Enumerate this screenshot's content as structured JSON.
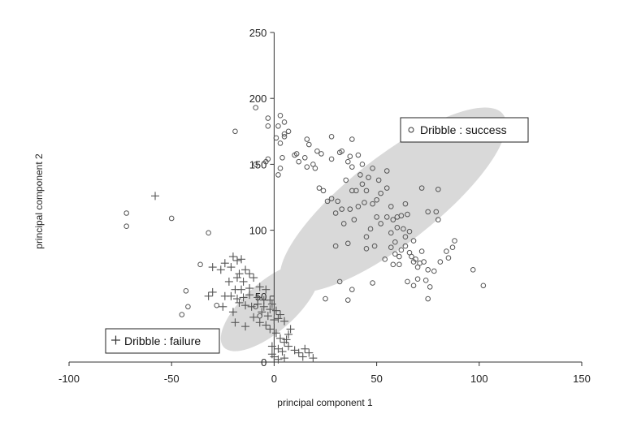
{
  "chart_data": {
    "type": "scatter",
    "title": "",
    "xlabel": "principal component 1",
    "ylabel": "principal component 2",
    "xlim": [
      -100,
      150
    ],
    "ylim": [
      0,
      250
    ],
    "xticks": [
      "-100",
      "-50",
      "0",
      "50",
      "100",
      "150"
    ],
    "yticks": [
      "0",
      "50",
      "100",
      "150",
      "200",
      "250"
    ],
    "grid": false,
    "series": [
      {
        "name": "Dribble : success",
        "marker": "circle",
        "color": "#555555",
        "points": [
          [
            -9,
            193
          ],
          [
            -3,
            179
          ],
          [
            -3,
            185
          ],
          [
            2,
            179
          ],
          [
            3,
            187
          ],
          [
            5,
            182
          ],
          [
            5,
            173
          ],
          [
            7,
            175
          ],
          [
            5,
            171
          ],
          [
            3,
            166
          ],
          [
            1,
            170
          ],
          [
            4,
            155
          ],
          [
            3,
            147
          ],
          [
            2,
            142
          ],
          [
            -4,
            152
          ],
          [
            -3,
            154
          ],
          [
            10,
            157
          ],
          [
            11,
            158
          ],
          [
            12,
            152
          ],
          [
            15,
            155
          ],
          [
            17,
            165
          ],
          [
            16,
            169
          ],
          [
            21,
            160
          ],
          [
            23,
            158
          ],
          [
            28,
            154
          ],
          [
            28,
            171
          ],
          [
            32,
            159
          ],
          [
            33,
            160
          ],
          [
            37,
            156
          ],
          [
            38,
            169
          ],
          [
            36,
            152
          ],
          [
            38,
            148
          ],
          [
            35,
            138
          ],
          [
            38,
            130
          ],
          [
            40,
            130
          ],
          [
            43,
            135
          ],
          [
            16,
            148
          ],
          [
            19,
            150
          ],
          [
            20,
            147
          ],
          [
            22,
            132
          ],
          [
            24,
            130
          ],
          [
            26,
            122
          ],
          [
            28,
            124
          ],
          [
            31,
            122
          ],
          [
            30,
            113
          ],
          [
            33,
            116
          ],
          [
            41,
            118
          ],
          [
            44,
            121
          ],
          [
            48,
            120
          ],
          [
            50,
            123
          ],
          [
            52,
            128
          ],
          [
            46,
            140
          ],
          [
            48,
            147
          ],
          [
            51,
            138
          ],
          [
            55,
            132
          ],
          [
            55,
            145
          ],
          [
            41,
            157
          ],
          [
            43,
            150
          ],
          [
            42,
            142
          ],
          [
            45,
            130
          ],
          [
            37,
            116
          ],
          [
            39,
            108
          ],
          [
            34,
            105
          ],
          [
            36,
            90
          ],
          [
            30,
            88
          ],
          [
            32,
            61
          ],
          [
            38,
            55
          ],
          [
            36,
            47
          ],
          [
            25,
            48
          ],
          [
            47,
            101
          ],
          [
            45,
            95
          ],
          [
            45,
            86
          ],
          [
            49,
            88
          ],
          [
            48,
            60
          ],
          [
            50,
            110
          ],
          [
            52,
            105
          ],
          [
            55,
            110
          ],
          [
            57,
            118
          ],
          [
            58,
            108
          ],
          [
            60,
            110
          ],
          [
            62,
            111
          ],
          [
            64,
            120
          ],
          [
            65,
            112
          ],
          [
            63,
            101
          ],
          [
            64,
            95
          ],
          [
            59,
            91
          ],
          [
            57,
            87
          ],
          [
            59,
            82
          ],
          [
            61,
            80
          ],
          [
            61,
            74
          ],
          [
            62,
            85
          ],
          [
            64,
            88
          ],
          [
            66,
            83
          ],
          [
            67,
            80
          ],
          [
            68,
            76
          ],
          [
            69,
            78
          ],
          [
            70,
            72
          ],
          [
            71,
            75
          ],
          [
            72,
            84
          ],
          [
            73,
            76
          ],
          [
            75,
            70
          ],
          [
            74,
            62
          ],
          [
            76,
            57
          ],
          [
            75,
            48
          ],
          [
            68,
            58
          ],
          [
            65,
            61
          ],
          [
            72,
            132
          ],
          [
            75,
            114
          ],
          [
            79,
            114
          ],
          [
            80,
            108
          ],
          [
            84,
            84
          ],
          [
            85,
            79
          ],
          [
            87,
            87
          ],
          [
            88,
            92
          ],
          [
            80,
            131
          ],
          [
            78,
            69
          ],
          [
            81,
            76
          ],
          [
            97,
            70
          ],
          [
            102,
            58
          ],
          [
            70,
            63
          ],
          [
            58,
            74
          ],
          [
            54,
            78
          ],
          [
            57,
            98
          ],
          [
            60,
            102
          ],
          [
            66,
            99
          ],
          [
            68,
            92
          ],
          [
            -72,
            113
          ],
          [
            -72,
            103
          ],
          [
            -50,
            109
          ],
          [
            -32,
            98
          ],
          [
            -19,
            175
          ],
          [
            -9,
            150
          ],
          [
            -36,
            74
          ],
          [
            -43,
            54
          ],
          [
            -42,
            42
          ],
          [
            -45,
            36
          ],
          [
            -28,
            43
          ],
          [
            -9,
            42
          ],
          [
            -7,
            35
          ]
        ]
      },
      {
        "name": "Dribble : failure",
        "marker": "plus",
        "color": "#555555",
        "points": [
          [
            -58,
            126
          ],
          [
            -30,
            72
          ],
          [
            -26,
            70
          ],
          [
            -24,
            75
          ],
          [
            -20,
            80
          ],
          [
            -18,
            77
          ],
          [
            -16,
            78
          ],
          [
            -21,
            72
          ],
          [
            -17,
            67
          ],
          [
            -14,
            70
          ],
          [
            -12,
            67
          ],
          [
            -18,
            64
          ],
          [
            -15,
            61
          ],
          [
            -10,
            64
          ],
          [
            -22,
            61
          ],
          [
            -24,
            50
          ],
          [
            -19,
            55
          ],
          [
            -16,
            55
          ],
          [
            -12,
            56
          ],
          [
            -7,
            57
          ],
          [
            -4,
            55
          ],
          [
            -21,
            50
          ],
          [
            -18,
            48
          ],
          [
            -15,
            49
          ],
          [
            -12,
            51
          ],
          [
            -8,
            49
          ],
          [
            -5,
            47
          ],
          [
            -2,
            47
          ],
          [
            -1,
            44
          ],
          [
            -17,
            45
          ],
          [
            -14,
            43
          ],
          [
            -11,
            42
          ],
          [
            -8,
            44
          ],
          [
            -5,
            42
          ],
          [
            -2,
            40
          ],
          [
            1,
            39
          ],
          [
            3,
            36
          ],
          [
            -6,
            38
          ],
          [
            -3,
            35
          ],
          [
            0,
            32
          ],
          [
            2,
            33
          ],
          [
            5,
            31
          ],
          [
            -30,
            53
          ],
          [
            -32,
            50
          ],
          [
            -25,
            42
          ],
          [
            -20,
            38
          ],
          [
            -10,
            34
          ],
          [
            -7,
            30
          ],
          [
            -4,
            28
          ],
          [
            -2,
            25
          ],
          [
            1,
            22
          ],
          [
            3,
            18
          ],
          [
            5,
            15
          ],
          [
            -1,
            12
          ],
          [
            2,
            10
          ],
          [
            4,
            8
          ],
          [
            7,
            12
          ],
          [
            10,
            9
          ],
          [
            12,
            7
          ],
          [
            15,
            10
          ],
          [
            17,
            7
          ],
          [
            14,
            4
          ],
          [
            0,
            4
          ],
          [
            2,
            2
          ],
          [
            -1,
            6
          ],
          [
            8,
            25
          ],
          [
            7,
            21
          ],
          [
            6,
            17
          ],
          [
            5,
            3
          ],
          [
            19,
            3
          ],
          [
            -19,
            30
          ],
          [
            -14,
            27
          ]
        ]
      }
    ],
    "ellipses": [
      {
        "center": [
          58,
          123
        ],
        "rx": 68,
        "ry": 33,
        "angle_deg": -38,
        "fill": "#d9d9d9"
      },
      {
        "center": [
          -2,
          42
        ],
        "rx": 30,
        "ry": 19,
        "angle_deg": -41,
        "fill": "#d9d9d9"
      }
    ],
    "legend": [
      {
        "position": "right-of-center",
        "marker": "circle",
        "label": "Dribble : success"
      },
      {
        "position": "lower-left",
        "marker": "plus",
        "label": "Dribble : failure"
      }
    ]
  }
}
